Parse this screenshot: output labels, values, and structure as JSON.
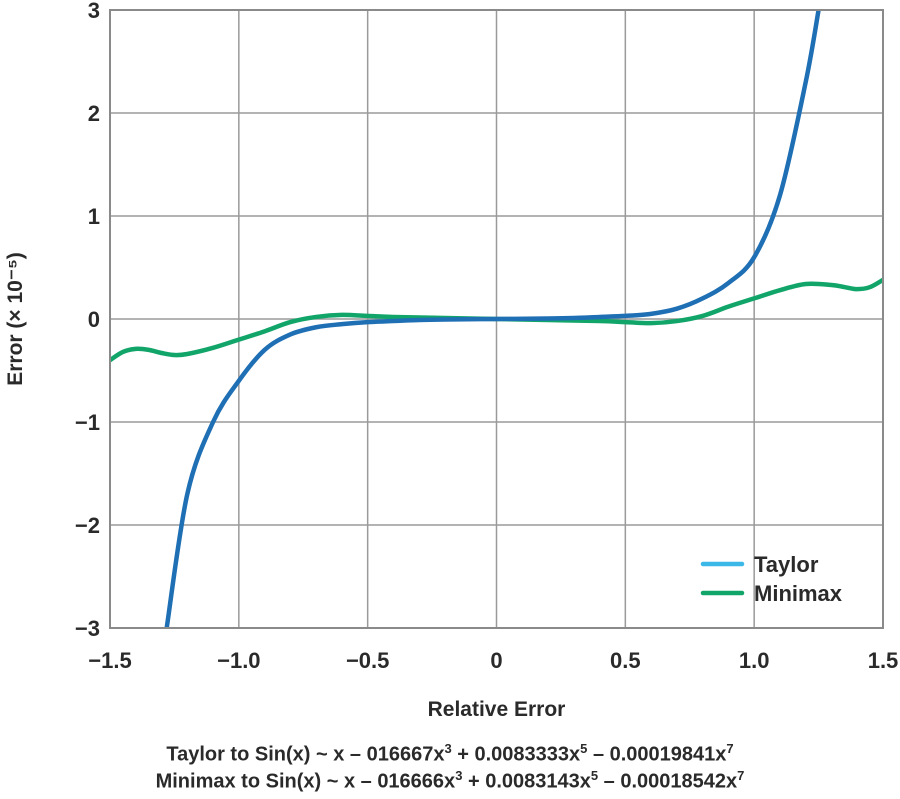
{
  "chart_data": {
    "type": "line",
    "xlabel": "Relative Error",
    "ylabel": "Error (× 10⁻⁵)",
    "xlim": [
      -1.5,
      1.5
    ],
    "ylim": [
      -3,
      3
    ],
    "x_ticks": [
      -1.5,
      -1.0,
      -0.5,
      0,
      0.5,
      1.0,
      1.5
    ],
    "x_tick_labels": [
      "−1.5",
      "−1.0",
      "−0.5",
      "0",
      "0.5",
      "1.0",
      "1.5"
    ],
    "y_ticks": [
      3,
      2,
      1,
      0,
      -1,
      -2,
      -3
    ],
    "y_tick_labels": [
      "3",
      "2",
      "1",
      "0",
      "−1",
      "−2",
      "−3"
    ],
    "grid": true,
    "legend_position": "bottom-right",
    "legend": [
      {
        "label": "Taylor",
        "color": "#3cb8e8"
      },
      {
        "label": "Minimax",
        "color": "#12a56a"
      }
    ],
    "series": [
      {
        "name": "Taylor",
        "color": "#1f6fb4",
        "x": [
          -1.28,
          -1.2,
          -1.1,
          -1.0,
          -0.9,
          -0.8,
          -0.7,
          -0.6,
          -0.5,
          -0.4,
          -0.3,
          -0.2,
          0,
          0.2,
          0.3,
          0.4,
          0.5,
          0.6,
          0.7,
          0.8,
          0.9,
          1.0,
          1.1,
          1.2,
          1.25
        ],
        "y": [
          -3.0,
          -1.7,
          -1.0,
          -0.6,
          -0.3,
          -0.15,
          -0.08,
          -0.05,
          -0.03,
          -0.02,
          -0.01,
          -0.005,
          0,
          0.005,
          0.01,
          0.02,
          0.03,
          0.05,
          0.1,
          0.2,
          0.35,
          0.6,
          1.2,
          2.3,
          3.0
        ]
      },
      {
        "name": "Minimax",
        "color": "#12a56a",
        "x": [
          -1.5,
          -1.45,
          -1.4,
          -1.35,
          -1.3,
          -1.25,
          -1.2,
          -1.1,
          -1.0,
          -0.9,
          -0.8,
          -0.7,
          -0.6,
          -0.5,
          -0.4,
          -0.2,
          0,
          0.2,
          0.4,
          0.5,
          0.6,
          0.7,
          0.8,
          0.9,
          1.0,
          1.1,
          1.2,
          1.3,
          1.35,
          1.4,
          1.45,
          1.5
        ],
        "y": [
          -0.4,
          -0.32,
          -0.29,
          -0.3,
          -0.33,
          -0.35,
          -0.34,
          -0.28,
          -0.2,
          -0.12,
          -0.03,
          0.02,
          0.04,
          0.03,
          0.02,
          0.01,
          0,
          -0.01,
          -0.02,
          -0.03,
          -0.04,
          -0.02,
          0.03,
          0.12,
          0.2,
          0.28,
          0.34,
          0.33,
          0.31,
          0.29,
          0.31,
          0.38
        ]
      }
    ]
  },
  "caption": {
    "line1": {
      "prefix": "Taylor to Sin(x) ~ x – 016667x",
      "exp1": "3",
      "mid1": " + 0.0083333x",
      "exp2": "5",
      "mid2": " – 0.00019841x",
      "exp3": "7"
    },
    "line2": {
      "prefix": "Minimax to Sin(x) ~ x – 016666x",
      "exp1": "3",
      "mid1": " + 0.0083143x",
      "exp2": "5",
      "mid2": " – 0.00018542x",
      "exp3": "7"
    }
  }
}
